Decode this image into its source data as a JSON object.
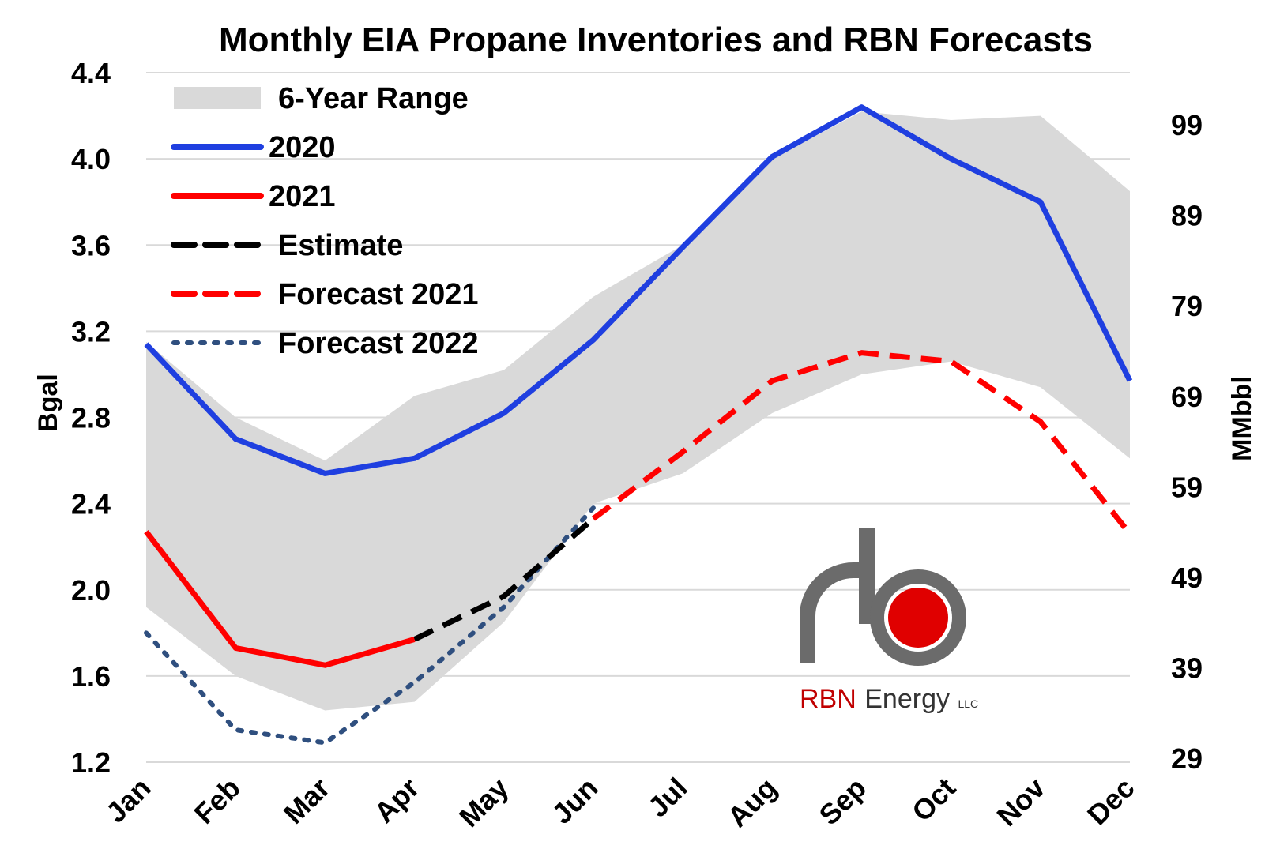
{
  "chart_data": {
    "type": "line",
    "title": "Monthly EIA Propane Inventories and RBN Forecasts",
    "categories": [
      "Jan",
      "Feb",
      "Mar",
      "Apr",
      "May",
      "Jun",
      "Jul",
      "Aug",
      "Sep",
      "Oct",
      "Nov",
      "Dec"
    ],
    "ylabel": "Bgal",
    "y2label": "MMbbl",
    "ylim": [
      1.2,
      4.4
    ],
    "yticks": [
      "1.2",
      "1.6",
      "2.0",
      "2.4",
      "2.8",
      "3.2",
      "3.6",
      "4.0",
      "4.4"
    ],
    "y2ticks": [
      "29",
      "39",
      "49",
      "59",
      "69",
      "79",
      "89",
      "99"
    ],
    "grid": true,
    "legend_position": "top-left",
    "range": {
      "name": "6-Year Range",
      "color": "#d9d9d9",
      "upper": [
        3.15,
        2.8,
        2.6,
        2.9,
        3.02,
        3.36,
        3.6,
        4.0,
        4.22,
        4.18,
        4.2,
        3.85
      ],
      "lower": [
        1.92,
        1.6,
        1.44,
        1.48,
        1.85,
        2.4,
        2.54,
        2.82,
        3.0,
        3.06,
        2.94,
        2.61
      ]
    },
    "series": [
      {
        "name": "2020",
        "color": "#1f3fe0",
        "style": "solid",
        "values": [
          3.14,
          2.7,
          2.54,
          2.61,
          2.82,
          3.16,
          3.59,
          4.01,
          4.24,
          4.0,
          3.8,
          2.97
        ]
      },
      {
        "name": "2021",
        "color": "#ff0000",
        "style": "solid",
        "values": [
          2.27,
          1.73,
          1.65,
          1.77,
          null,
          null,
          null,
          null,
          null,
          null,
          null,
          null
        ]
      },
      {
        "name": "Estimate",
        "color": "#000000",
        "style": "dashed",
        "values": [
          null,
          null,
          null,
          1.77,
          1.97,
          2.33,
          null,
          null,
          null,
          null,
          null,
          null
        ]
      },
      {
        "name": "Forecast 2021",
        "color": "#ff0000",
        "style": "dashed",
        "values": [
          null,
          null,
          null,
          null,
          null,
          2.33,
          2.64,
          2.97,
          3.1,
          3.06,
          2.78,
          2.26
        ]
      },
      {
        "name": "Forecast 2022",
        "color": "#2f4f7f",
        "style": "dotted",
        "values": [
          1.8,
          1.35,
          1.29,
          1.57,
          1.92,
          2.38,
          null,
          null,
          null,
          null,
          null,
          null
        ]
      }
    ],
    "logo": {
      "rbn": "RBN",
      "energy": "Energy",
      "llc": "LLC"
    }
  }
}
